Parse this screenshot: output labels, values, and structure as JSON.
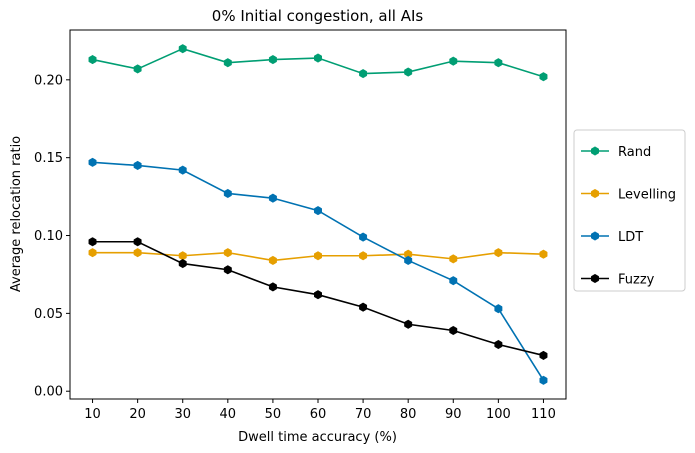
{
  "chart_data": {
    "type": "line",
    "title": "0% Initial congestion, all AIs",
    "xlabel": "Dwell time accuracy (%)",
    "ylabel": "Average relocation ratio",
    "x": [
      10,
      20,
      30,
      40,
      50,
      60,
      70,
      80,
      90,
      100,
      110
    ],
    "xlim": [
      5,
      115
    ],
    "ylim": [
      -0.005,
      0.232
    ],
    "xticks": [
      "10",
      "20",
      "30",
      "40",
      "50",
      "60",
      "70",
      "80",
      "90",
      "100",
      "110"
    ],
    "yticks": [
      "0.00",
      "0.05",
      "0.10",
      "0.15",
      "0.20"
    ],
    "ytick_values": [
      0.0,
      0.05,
      0.1,
      0.15,
      0.2
    ],
    "grid": false,
    "legend_position": "outside-right",
    "series": [
      {
        "name": "Rand",
        "color": "#009e73",
        "values": [
          0.213,
          0.207,
          0.22,
          0.211,
          0.213,
          0.214,
          0.204,
          0.205,
          0.212,
          0.211,
          0.202
        ]
      },
      {
        "name": "Levelling",
        "color": "#e69f00",
        "values": [
          0.089,
          0.089,
          0.087,
          0.089,
          0.084,
          0.087,
          0.087,
          0.088,
          0.085,
          0.089,
          0.088
        ]
      },
      {
        "name": "LDT",
        "color": "#0072b2",
        "values": [
          0.147,
          0.145,
          0.142,
          0.127,
          0.124,
          0.116,
          0.099,
          0.084,
          0.071,
          0.053,
          0.007
        ]
      },
      {
        "name": "Fuzzy",
        "color": "#000000",
        "values": [
          0.096,
          0.096,
          0.082,
          0.078,
          0.067,
          0.062,
          0.054,
          0.043,
          0.039,
          0.03,
          0.023
        ]
      }
    ]
  }
}
